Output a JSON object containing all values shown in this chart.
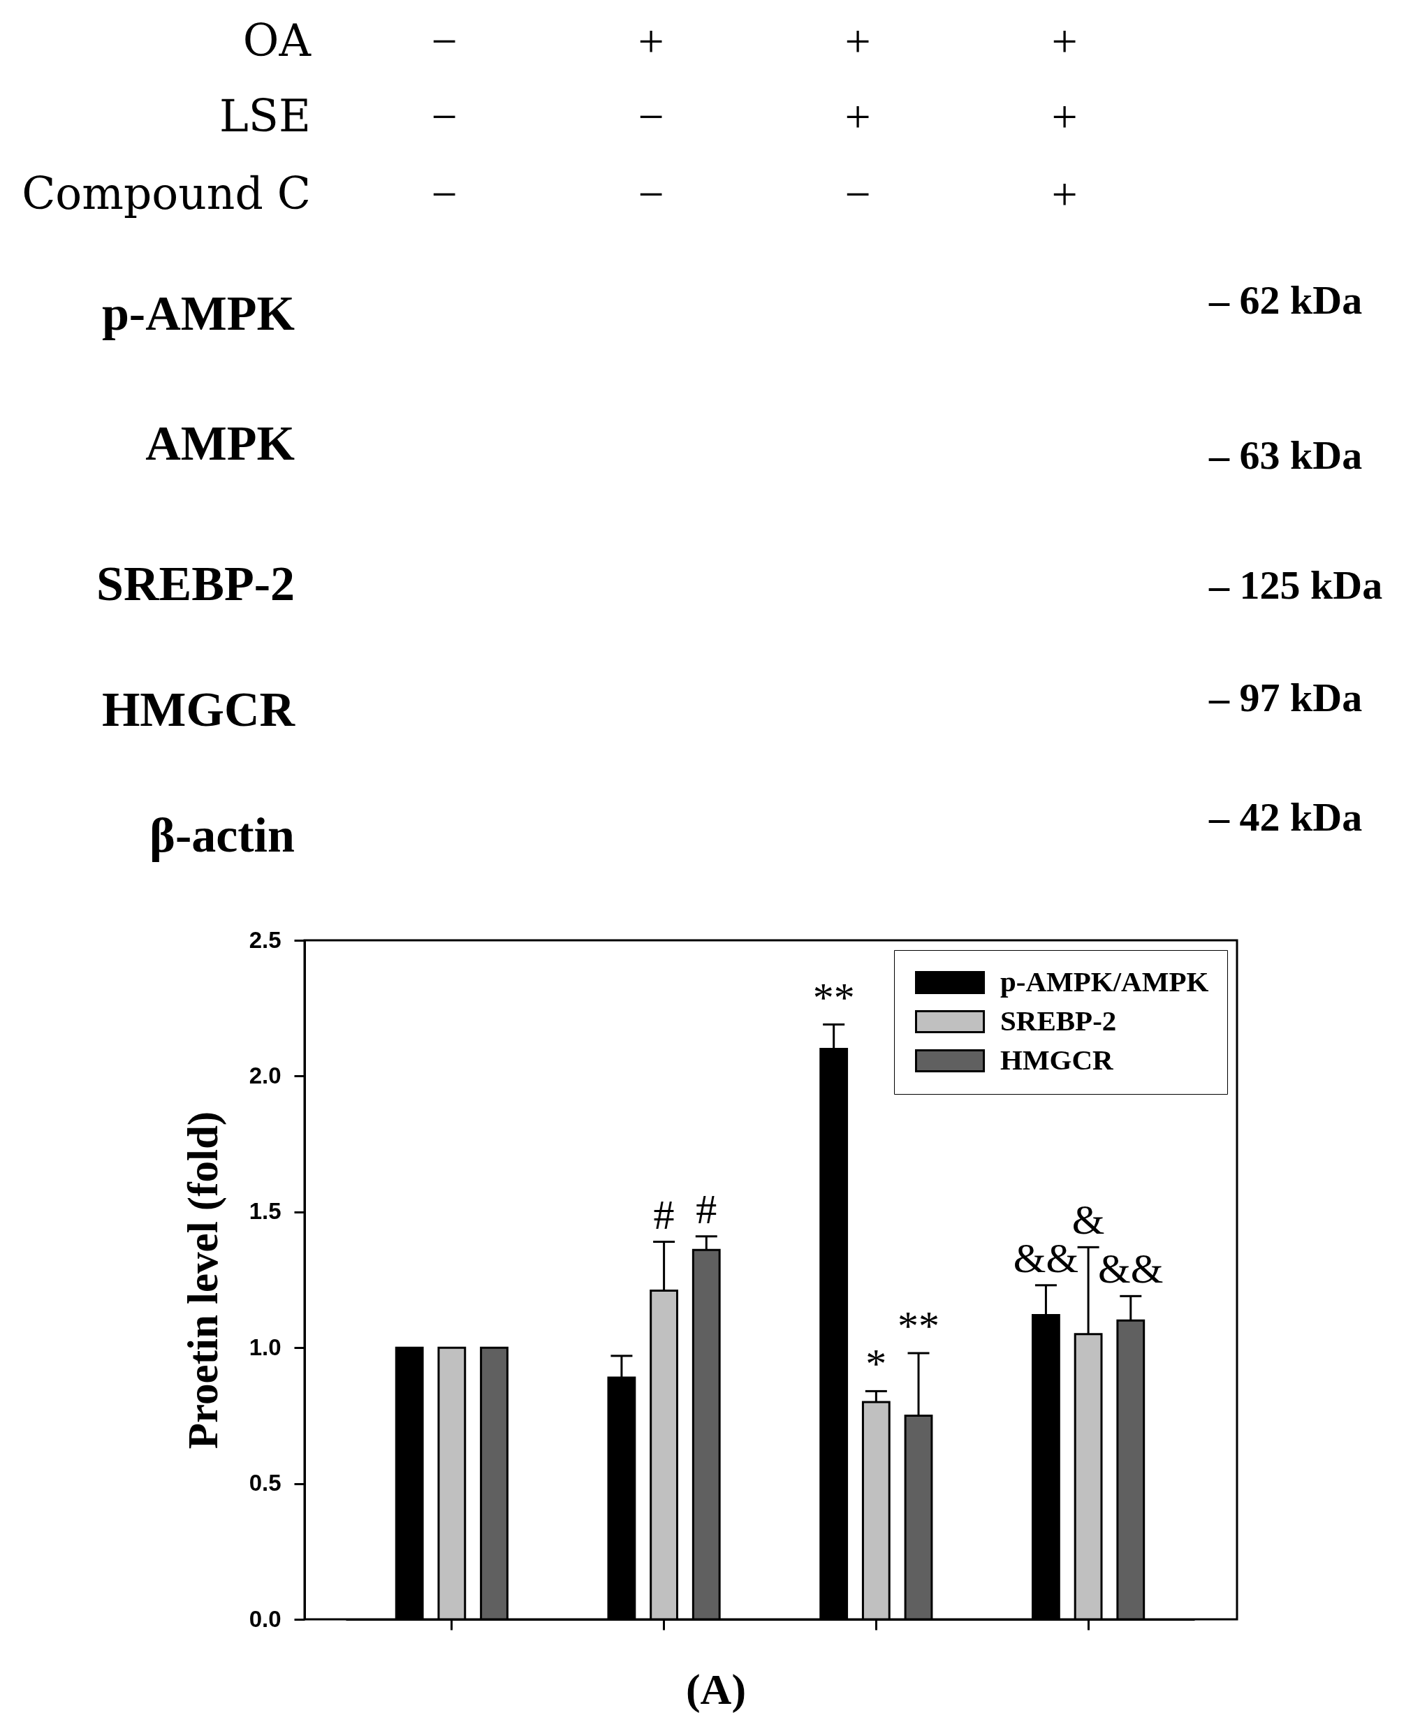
{
  "chart_data": {
    "type": "bar",
    "ylabel": "Proetin level (fold)",
    "categories": [
      null,
      null,
      null,
      null
    ],
    "series": [
      {
        "name": "p-AMPK/AMPK",
        "color": "#000000",
        "values": [
          1.0,
          0.89,
          2.1,
          1.12
        ],
        "errors": [
          null,
          [
            0.89,
            0.97
          ],
          [
            2.1,
            2.19
          ],
          [
            1.12,
            1.23
          ]
        ],
        "value_labels": [
          null,
          null,
          "**",
          "&&"
        ]
      },
      {
        "name": "SREBP-2",
        "color": "#c0c0c0",
        "values": [
          1.0,
          1.21,
          0.8,
          1.05
        ],
        "errors": [
          null,
          [
            1.21,
            1.39
          ],
          [
            0.8,
            0.84
          ],
          [
            1.05,
            1.37
          ]
        ],
        "value_labels": [
          null,
          "#",
          "*",
          "&"
        ]
      },
      {
        "name": "HMGCR",
        "color": "#606060",
        "values": [
          1.0,
          1.36,
          0.75,
          1.1
        ],
        "errors": [
          null,
          [
            1.36,
            1.41
          ],
          [
            0.75,
            0.98
          ],
          [
            1.1,
            1.19
          ]
        ],
        "value_labels": [
          null,
          "#",
          "**",
          "&&"
        ]
      }
    ],
    "ylim": [
      0,
      2.5
    ],
    "yticks": [
      {
        "value": 0,
        "label": "0.0"
      },
      {
        "value": 0.5,
        "label": "0.5"
      },
      {
        "value": 1,
        "label": "1.0"
      },
      {
        "value": 1.5,
        "label": "1.5"
      },
      {
        "value": 2,
        "label": "2.0"
      },
      {
        "value": 2.5,
        "label": "2.5"
      }
    ],
    "tick_labels": "y",
    "legend": "top right",
    "annotations": [
      "OA",
      "LSE",
      "Compound C",
      "−",
      "+",
      "+",
      "+",
      "−",
      "−",
      "+",
      "+",
      "−",
      "−",
      "−",
      "+",
      "p-AMPK",
      "AMPK",
      "SREBP-2",
      "HMGCR",
      "β-actin",
      "– 62 kDa",
      "– 63 kDa",
      "– 125 kDa",
      "– 97 kDa",
      "– 42 kDa",
      "(A)"
    ]
  }
}
